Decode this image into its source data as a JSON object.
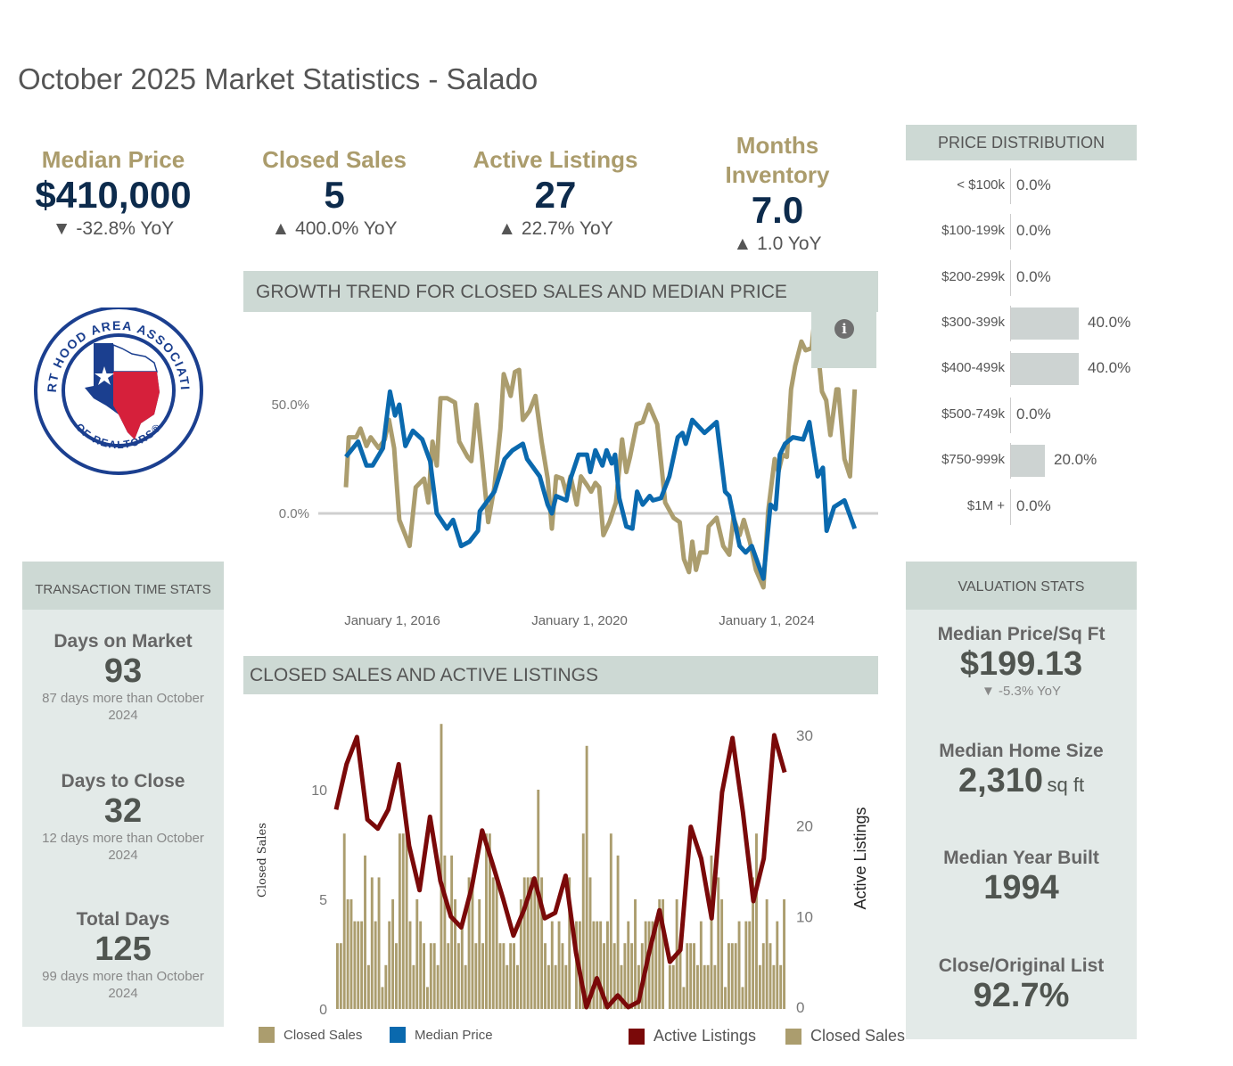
{
  "page_title": "October 2025 Market Statistics - Salado",
  "kpis": [
    {
      "label": "Median Price",
      "value": "$410,000",
      "change": "▼ -32.8% YoY"
    },
    {
      "label": "Closed Sales",
      "value": "5",
      "change": "▲ 400.0% YoY"
    },
    {
      "label": "Active Listings",
      "value": "27",
      "change": "▲ 22.7% YoY"
    },
    {
      "label_line1": "Months",
      "label_line2": "Inventory",
      "value": "7.0",
      "change": "▲ 1.0 YoY"
    }
  ],
  "logo": {
    "top_text": "FORT HOOD AREA ASSOCIATION",
    "bottom_text": "OF REALTORS®"
  },
  "price_distribution": {
    "title": "PRICE DISTRIBUTION",
    "rows": [
      {
        "label": "< $100k",
        "percent": 0,
        "display": "0.0%"
      },
      {
        "label": "$100-199k",
        "percent": 0,
        "display": "0.0%"
      },
      {
        "label": "$200-299k",
        "percent": 0,
        "display": "0.0%"
      },
      {
        "label": "$300-399k",
        "percent": 40,
        "display": "40.0%"
      },
      {
        "label": "$400-499k",
        "percent": 40,
        "display": "40.0%"
      },
      {
        "label": "$500-749k",
        "percent": 0,
        "display": "0.0%"
      },
      {
        "label": "$750-999k",
        "percent": 20,
        "display": "20.0%"
      },
      {
        "label": "$1M +",
        "percent": 0,
        "display": "0.0%"
      }
    ]
  },
  "transaction_time": {
    "title": "TRANSACTION TIME STATS",
    "items": [
      {
        "label": "Days on Market",
        "value": "93",
        "note": "87 days more than October 2024"
      },
      {
        "label": "Days to Close",
        "value": "32",
        "note": "12 days more than October 2024"
      },
      {
        "label": "Total Days",
        "value": "125",
        "note": "99 days more than October 2024"
      }
    ]
  },
  "valuation": {
    "title": "VALUATION STATS",
    "items": [
      {
        "label": "Median Price/Sq Ft",
        "value": "$199.13",
        "note": "▼ -5.3% YoY"
      },
      {
        "label": "Median Home Size",
        "value": "2,310",
        "unit": "sq ft"
      },
      {
        "label": "Median Year Built",
        "value": "1994"
      },
      {
        "label": "Close/Original List",
        "value": "92.7%"
      }
    ]
  },
  "legend": {
    "closed_sales": "Closed Sales",
    "median_price": "Median Price",
    "active_listings": "Active Listings",
    "closed_sales_2": "Closed Sales"
  },
  "colors": {
    "gold": "#ab9d6e",
    "blue": "#0a69ae",
    "maroon": "#7a0909",
    "header": "#cdd9d4",
    "panel": "#e3eae8"
  },
  "chart_data": [
    {
      "type": "line",
      "title": "GROWTH TREND FOR CLOSED SALES AND MEDIAN PRICE",
      "xlabel": "",
      "ylabel": "",
      "x_ticks": [
        {
          "year": 2016,
          "label": "January 1, 2016"
        },
        {
          "year": 2020,
          "label": "January 1, 2020"
        },
        {
          "year": 2024,
          "label": "January 1, 2024"
        }
      ],
      "y_ticks": [
        {
          "value": 0,
          "label": "0.0%"
        },
        {
          "value": 50,
          "label": "50.0%"
        }
      ],
      "ylim": [
        -37,
        92
      ],
      "xlim": [
        2015.0,
        2025.9
      ],
      "series": [
        {
          "name": "Closed Sales",
          "color": "#ab9d6e",
          "points": [
            [
              2015.01,
              12
            ],
            [
              2015.07,
              35
            ],
            [
              2015.23,
              35
            ],
            [
              2015.32,
              39
            ],
            [
              2015.45,
              31
            ],
            [
              2015.54,
              35
            ],
            [
              2015.71,
              30
            ],
            [
              2015.84,
              34
            ],
            [
              2015.93,
              43
            ],
            [
              2016.04,
              30
            ],
            [
              2016.15,
              -3
            ],
            [
              2016.28,
              -10
            ],
            [
              2016.37,
              -15
            ],
            [
              2016.5,
              12
            ],
            [
              2016.68,
              16
            ],
            [
              2016.77,
              5
            ],
            [
              2016.86,
              33
            ],
            [
              2016.95,
              22
            ],
            [
              2017.03,
              53
            ],
            [
              2017.17,
              53
            ],
            [
              2017.34,
              51
            ],
            [
              2017.43,
              33
            ],
            [
              2017.61,
              26
            ],
            [
              2017.69,
              24
            ],
            [
              2017.8,
              50
            ],
            [
              2017.91,
              27
            ],
            [
              2018.05,
              -4
            ],
            [
              2018.18,
              12
            ],
            [
              2018.31,
              39
            ],
            [
              2018.38,
              64
            ],
            [
              2018.53,
              54
            ],
            [
              2018.62,
              65
            ],
            [
              2018.71,
              66
            ],
            [
              2018.79,
              43
            ],
            [
              2018.93,
              47
            ],
            [
              2019.06,
              54
            ],
            [
              2019.19,
              33
            ],
            [
              2019.32,
              16
            ],
            [
              2019.41,
              -7
            ],
            [
              2019.5,
              17
            ],
            [
              2019.63,
              16
            ],
            [
              2019.72,
              9
            ],
            [
              2019.81,
              17
            ],
            [
              2019.94,
              4
            ],
            [
              2020.03,
              17
            ],
            [
              2020.16,
              13
            ],
            [
              2020.25,
              10
            ],
            [
              2020.34,
              14
            ],
            [
              2020.42,
              12
            ],
            [
              2020.51,
              -10
            ],
            [
              2020.64,
              -4
            ],
            [
              2020.78,
              5
            ],
            [
              2020.91,
              34
            ],
            [
              2021.0,
              19
            ],
            [
              2021.08,
              26
            ],
            [
              2021.22,
              41
            ],
            [
              2021.35,
              42
            ],
            [
              2021.48,
              50
            ],
            [
              2021.66,
              41
            ],
            [
              2021.83,
              5
            ],
            [
              2022.01,
              -2
            ],
            [
              2022.14,
              -4
            ],
            [
              2022.23,
              -21
            ],
            [
              2022.34,
              -27
            ],
            [
              2022.41,
              -13
            ],
            [
              2022.49,
              -26
            ],
            [
              2022.58,
              -18
            ],
            [
              2022.71,
              -18
            ],
            [
              2022.76,
              -6
            ],
            [
              2022.93,
              -2
            ],
            [
              2023.07,
              -15
            ],
            [
              2023.2,
              -19
            ],
            [
              2023.29,
              -2
            ],
            [
              2023.42,
              -10
            ],
            [
              2023.51,
              -3
            ],
            [
              2023.64,
              -13
            ],
            [
              2023.77,
              -26
            ],
            [
              2023.93,
              -34
            ],
            [
              2024.03,
              1
            ],
            [
              2024.17,
              25
            ],
            [
              2024.25,
              19
            ],
            [
              2024.34,
              27
            ],
            [
              2024.43,
              26
            ],
            [
              2024.52,
              57
            ],
            [
              2024.61,
              68
            ],
            [
              2024.74,
              79
            ],
            [
              2024.83,
              75
            ],
            [
              2024.96,
              76
            ],
            [
              2025.0,
              85
            ],
            [
              2025.09,
              76
            ],
            [
              2025.18,
              56
            ],
            [
              2025.27,
              52
            ],
            [
              2025.36,
              36
            ],
            [
              2025.49,
              57
            ],
            [
              2025.53,
              57
            ],
            [
              2025.66,
              25
            ],
            [
              2025.78,
              17
            ],
            [
              2025.88,
              57
            ]
          ]
        },
        {
          "name": "Median Price",
          "color": "#0a69ae",
          "points": [
            [
              2015.01,
              26
            ],
            [
              2015.27,
              33
            ],
            [
              2015.45,
              22
            ],
            [
              2015.58,
              22
            ],
            [
              2015.8,
              30
            ],
            [
              2015.95,
              56
            ],
            [
              2016.06,
              45
            ],
            [
              2016.15,
              50
            ],
            [
              2016.28,
              31
            ],
            [
              2016.44,
              38
            ],
            [
              2016.64,
              34
            ],
            [
              2016.81,
              24
            ],
            [
              2016.95,
              0
            ],
            [
              2017.17,
              -7
            ],
            [
              2017.3,
              -3
            ],
            [
              2017.47,
              -15
            ],
            [
              2017.65,
              -13
            ],
            [
              2017.83,
              -8
            ],
            [
              2017.87,
              1
            ],
            [
              2018.18,
              10
            ],
            [
              2018.4,
              25
            ],
            [
              2018.57,
              29
            ],
            [
              2018.79,
              32
            ],
            [
              2018.88,
              25
            ],
            [
              2019.15,
              17
            ],
            [
              2019.32,
              4
            ],
            [
              2019.41,
              0
            ],
            [
              2019.5,
              8
            ],
            [
              2019.72,
              6
            ],
            [
              2019.81,
              16
            ],
            [
              2019.98,
              27
            ],
            [
              2020.16,
              27
            ],
            [
              2020.23,
              19
            ],
            [
              2020.34,
              29
            ],
            [
              2020.49,
              22
            ],
            [
              2020.58,
              29
            ],
            [
              2020.69,
              23
            ],
            [
              2020.76,
              27
            ],
            [
              2020.85,
              7
            ],
            [
              2021.0,
              -6
            ],
            [
              2021.13,
              -7
            ],
            [
              2021.23,
              10
            ],
            [
              2021.35,
              4
            ],
            [
              2021.5,
              8
            ],
            [
              2021.57,
              6
            ],
            [
              2021.74,
              7
            ],
            [
              2021.92,
              17
            ],
            [
              2022.1,
              35
            ],
            [
              2022.2,
              37
            ],
            [
              2022.27,
              32
            ],
            [
              2022.41,
              43
            ],
            [
              2022.67,
              37
            ],
            [
              2022.93,
              42
            ],
            [
              2023.11,
              10
            ],
            [
              2023.2,
              8
            ],
            [
              2023.42,
              -15
            ],
            [
              2023.55,
              -18
            ],
            [
              2023.68,
              -15
            ],
            [
              2023.93,
              -30
            ],
            [
              2024.08,
              4
            ],
            [
              2024.19,
              2
            ],
            [
              2024.28,
              27
            ],
            [
              2024.39,
              32
            ],
            [
              2024.56,
              35
            ],
            [
              2024.78,
              34
            ],
            [
              2024.91,
              42
            ],
            [
              2025.09,
              17
            ],
            [
              2025.2,
              21
            ],
            [
              2025.28,
              -8
            ],
            [
              2025.44,
              3
            ],
            [
              2025.66,
              6
            ],
            [
              2025.88,
              -7
            ]
          ]
        }
      ]
    },
    {
      "type": "bar",
      "title": "CLOSED SALES AND ACTIVE LISTINGS",
      "ylabel": "Closed Sales",
      "y2label": "Active Listings",
      "ylim": [
        0,
        13.2
      ],
      "y2lim": [
        0,
        32
      ],
      "y_ticks": [
        {
          "value": 0,
          "label": "0"
        },
        {
          "value": 5,
          "label": "5"
        },
        {
          "value": 10,
          "label": "10"
        }
      ],
      "y2_ticks": [
        {
          "value": 0,
          "label": "0"
        },
        {
          "value": 10,
          "label": "10"
        },
        {
          "value": 20,
          "label": "20"
        },
        {
          "value": 30,
          "label": "30"
        }
      ],
      "x_start": "January 2015",
      "x_end": "October 2025",
      "series": [
        {
          "name": "Closed Sales",
          "type": "bar",
          "axis": "left",
          "color": "#ab9d6e",
          "interval": "monthly",
          "values": [
            3,
            3,
            8,
            5,
            5,
            4,
            4,
            4,
            7,
            2,
            6,
            4,
            6,
            1,
            2,
            4,
            5,
            3,
            8,
            8,
            8,
            4,
            2,
            5,
            4,
            3,
            1,
            3,
            3,
            2,
            13,
            7,
            3,
            7,
            5,
            3,
            4,
            2,
            6,
            6,
            3,
            5,
            3,
            8,
            8,
            6,
            6,
            3,
            3,
            2,
            3,
            3,
            2,
            5,
            6,
            6,
            6,
            6,
            10,
            6,
            3,
            2,
            4,
            2,
            4,
            3,
            2,
            6,
            0,
            4,
            4,
            8,
            12,
            6,
            4,
            4,
            4,
            3,
            4,
            8,
            3,
            7,
            2,
            3,
            4,
            3,
            5,
            2,
            3,
            4,
            4,
            4,
            4,
            5,
            5,
            0,
            2,
            2,
            5,
            3,
            1,
            3,
            3,
            3,
            2,
            4,
            2,
            2,
            7,
            2,
            6,
            5,
            1,
            3,
            3,
            3,
            4,
            1,
            4,
            4,
            6,
            8,
            2,
            3,
            5,
            3,
            2,
            4,
            2,
            5
          ]
        },
        {
          "name": "Active Listings",
          "type": "line",
          "axis": "right",
          "color": "#7a0909",
          "interval": "quarterly",
          "values": [
            21.8,
            26.8,
            29.8,
            20.7,
            19.7,
            21.8,
            26.8,
            17.8,
            12.9,
            21,
            13.9,
            10,
            8.8,
            13.2,
            19.5,
            15.8,
            12,
            7.9,
            10.7,
            14.2,
            9.8,
            10.4,
            14.5,
            6,
            0,
            3.2,
            0,
            1.3,
            0,
            0.6,
            6,
            10.7,
            5,
            6.3,
            19.9,
            16.4,
            9.8,
            23.7,
            29.7,
            21.5,
            11.7,
            16.4,
            30,
            25.9
          ]
        }
      ]
    }
  ]
}
